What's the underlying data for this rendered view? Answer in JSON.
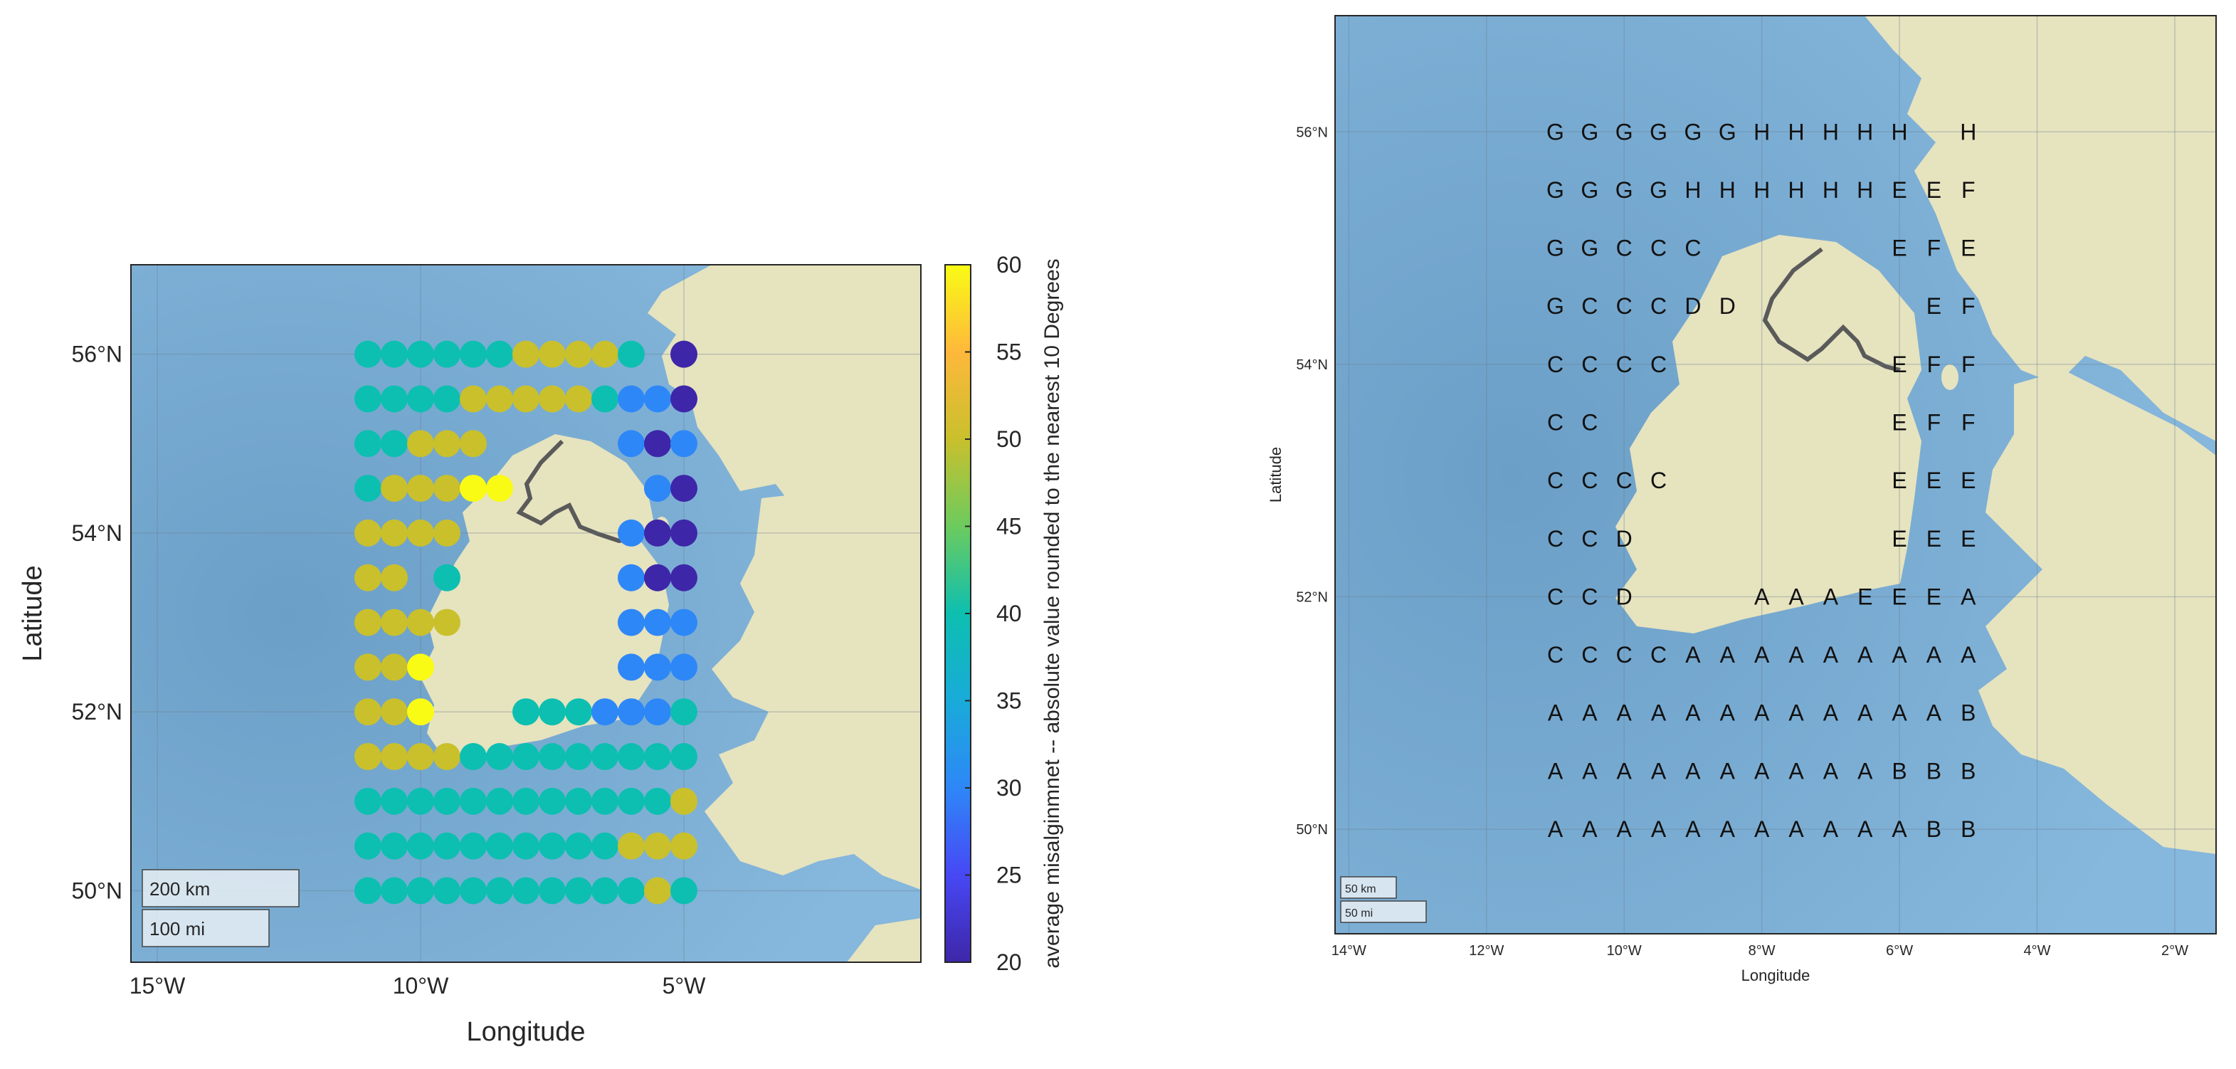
{
  "left_map": {
    "xlabel": "Longitude",
    "ylabel": "Latitude",
    "xticks": [
      "15°W",
      "10°W",
      "5°W"
    ],
    "yticks": [
      "50°N",
      "52°N",
      "54°N",
      "56°N"
    ],
    "scalebar_km": "200 km",
    "scalebar_mi": "100 mi",
    "colorbar": {
      "label": "average misalginmnet -- absolute value rounded to the nearest 10 Degrees",
      "ticks": [
        "20",
        "25",
        "30",
        "35",
        "40",
        "45",
        "50",
        "55",
        "60"
      ]
    }
  },
  "right_map": {
    "xlabel": "Longitude",
    "ylabel": "Latitude",
    "xticks": [
      "14°W",
      "12°W",
      "10°W",
      "8°W",
      "6°W",
      "4°W",
      "2°W"
    ],
    "yticks": [
      "50°N",
      "52°N",
      "54°N",
      "56°N"
    ],
    "scalebar_km": "50 km",
    "scalebar_mi": "50 mi"
  },
  "chart_data": [
    {
      "type": "scatter",
      "xlabel": "Longitude",
      "ylabel": "Latitude",
      "xlim": [
        -15.5,
        -0.5
      ],
      "ylim": [
        49.2,
        57.0
      ],
      "clim": [
        20,
        60
      ],
      "colormap": "parula",
      "lons": [
        -11,
        -10.5,
        -10,
        -9.5,
        -9,
        -8.5,
        -8,
        -7.5,
        -7,
        -6.5,
        -6,
        -5.5,
        -5
      ],
      "lats": [
        56,
        55.5,
        55,
        54.5,
        54,
        53.5,
        53,
        52.5,
        52,
        51.5,
        51,
        50.5,
        50
      ],
      "values": [
        [
          40,
          40,
          40,
          40,
          40,
          40,
          50,
          50,
          50,
          50,
          40,
          null,
          20
        ],
        [
          40,
          40,
          40,
          40,
          50,
          50,
          50,
          50,
          50,
          40,
          30,
          30,
          20
        ],
        [
          40,
          40,
          50,
          50,
          50,
          null,
          null,
          null,
          null,
          null,
          30,
          20,
          30
        ],
        [
          40,
          50,
          50,
          50,
          60,
          60,
          null,
          null,
          null,
          null,
          null,
          30,
          20
        ],
        [
          50,
          50,
          50,
          50,
          null,
          null,
          null,
          null,
          null,
          null,
          30,
          20,
          20
        ],
        [
          50,
          50,
          null,
          40,
          null,
          null,
          null,
          null,
          null,
          null,
          30,
          20,
          20
        ],
        [
          50,
          50,
          50,
          50,
          null,
          null,
          null,
          null,
          null,
          null,
          30,
          30,
          30
        ],
        [
          50,
          50,
          60,
          null,
          null,
          null,
          null,
          null,
          null,
          null,
          30,
          30,
          30
        ],
        [
          50,
          50,
          60,
          null,
          null,
          null,
          40,
          40,
          40,
          30,
          30,
          30,
          40
        ],
        [
          50,
          50,
          50,
          50,
          40,
          40,
          40,
          40,
          40,
          40,
          40,
          40,
          40
        ],
        [
          40,
          40,
          40,
          40,
          40,
          40,
          40,
          40,
          40,
          40,
          40,
          40,
          50
        ],
        [
          40,
          40,
          40,
          40,
          40,
          40,
          40,
          40,
          40,
          40,
          50,
          50,
          50
        ],
        [
          40,
          40,
          40,
          40,
          40,
          40,
          40,
          40,
          40,
          40,
          40,
          50,
          40
        ]
      ]
    },
    {
      "type": "table",
      "xlabel": "Longitude",
      "ylabel": "Latitude",
      "xlim": [
        -14.2,
        -1.4
      ],
      "ylim": [
        49.1,
        57.0
      ],
      "lons": [
        -11,
        -10.5,
        -10,
        -9.5,
        -9,
        -8.5,
        -8,
        -7.5,
        -7,
        -6.5,
        -6,
        -5.5,
        -5
      ],
      "lats": [
        56,
        55.5,
        55,
        54.5,
        54,
        53.5,
        53,
        52.5,
        52,
        51.5,
        51,
        50.5,
        50
      ],
      "labels": [
        [
          "G",
          "G",
          "G",
          "G",
          "G",
          "G",
          "H",
          "H",
          "H",
          "H",
          "H",
          "",
          "H"
        ],
        [
          "G",
          "G",
          "G",
          "G",
          "H",
          "H",
          "H",
          "H",
          "H",
          "H",
          "E",
          "E",
          "F"
        ],
        [
          "G",
          "G",
          "C",
          "C",
          "C",
          "",
          "",
          "",
          "",
          "",
          "E",
          "F",
          "E"
        ],
        [
          "G",
          "C",
          "C",
          "C",
          "D",
          "D",
          "",
          "",
          "",
          "",
          "",
          "E",
          "F"
        ],
        [
          "C",
          "C",
          "C",
          "C",
          "",
          "",
          "",
          "",
          "",
          "",
          "E",
          "F",
          "F"
        ],
        [
          "C",
          "C",
          "",
          "",
          "",
          "",
          "",
          "",
          "",
          "",
          "E",
          "F",
          "F"
        ],
        [
          "C",
          "C",
          "C",
          "C",
          "",
          "",
          "",
          "",
          "",
          "",
          "E",
          "E",
          "E"
        ],
        [
          "C",
          "C",
          "D",
          "",
          "",
          "",
          "",
          "",
          "",
          "",
          "E",
          "E",
          "E"
        ],
        [
          "C",
          "C",
          "D",
          "",
          "",
          "",
          "A",
          "A",
          "A",
          "E",
          "E",
          "E",
          "A"
        ],
        [
          "C",
          "C",
          "C",
          "C",
          "A",
          "A",
          "A",
          "A",
          "A",
          "A",
          "A",
          "A",
          "A"
        ],
        [
          "A",
          "A",
          "A",
          "A",
          "A",
          "A",
          "A",
          "A",
          "A",
          "A",
          "A",
          "A",
          "B"
        ],
        [
          "A",
          "A",
          "A",
          "A",
          "A",
          "A",
          "A",
          "A",
          "A",
          "A",
          "B",
          "B",
          "B"
        ],
        [
          "A",
          "A",
          "A",
          "A",
          "A",
          "A",
          "A",
          "A",
          "A",
          "A",
          "A",
          "B",
          "B"
        ]
      ]
    }
  ]
}
